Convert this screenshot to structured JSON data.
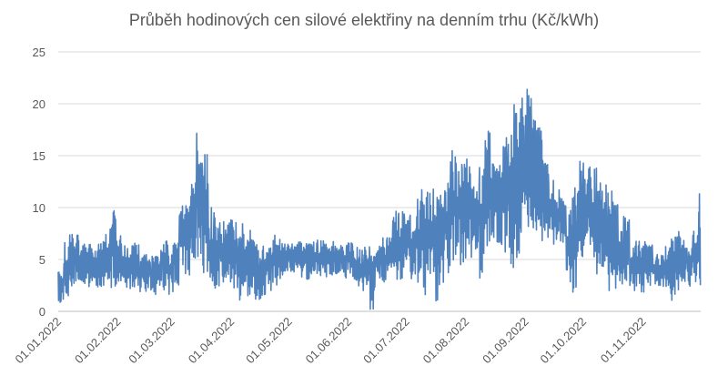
{
  "chart_data": {
    "type": "line",
    "title": "Průběh hodinových cen silové elektřiny na denním trhu (Kč/kWh)",
    "xlabel": "",
    "ylabel": "",
    "ylim": [
      0,
      25
    ],
    "yticks": [
      "0",
      "5",
      "10",
      "15",
      "20",
      "25"
    ],
    "xlim": [
      "2022-01-01",
      "2022-12-01"
    ],
    "xticks": [
      "01.01.2022",
      "01.02.2022",
      "01.03.2022",
      "01.04.2022",
      "01.05.2022",
      "01.06.2022",
      "01.07.2022",
      "01.08.2022",
      "01.09.2022",
      "01.10.2022",
      "01.11.2022"
    ],
    "grid": "horizontal",
    "legend": "none",
    "series_color": "#4F81BD",
    "grid_color": "#D9D9D9",
    "series": [
      {
        "x": [
          "2022-01-01",
          "2022-01-04",
          "2022-01-07",
          "2022-01-10",
          "2022-01-13",
          "2022-01-16",
          "2022-01-19",
          "2022-01-22",
          "2022-01-25",
          "2022-01-28",
          "2022-01-31",
          "2022-02-03",
          "2022-02-06",
          "2022-02-09",
          "2022-02-12",
          "2022-02-15",
          "2022-02-18",
          "2022-02-21",
          "2022-02-24",
          "2022-02-27",
          "2022-03-02",
          "2022-03-05",
          "2022-03-08",
          "2022-03-11",
          "2022-03-14",
          "2022-03-17",
          "2022-03-20",
          "2022-03-23",
          "2022-03-26",
          "2022-03-29",
          "2022-04-01",
          "2022-04-04",
          "2022-04-07",
          "2022-04-10",
          "2022-04-13",
          "2022-04-16",
          "2022-04-19",
          "2022-04-22",
          "2022-04-25",
          "2022-04-28",
          "2022-05-01",
          "2022-05-04",
          "2022-05-07",
          "2022-05-10",
          "2022-05-13",
          "2022-05-16",
          "2022-05-19",
          "2022-05-22",
          "2022-05-25",
          "2022-05-28",
          "2022-05-31",
          "2022-06-03",
          "2022-06-06",
          "2022-06-09",
          "2022-06-12",
          "2022-06-15",
          "2022-06-18",
          "2022-06-21",
          "2022-06-24",
          "2022-06-27",
          "2022-06-30",
          "2022-07-03",
          "2022-07-06",
          "2022-07-09",
          "2022-07-12",
          "2022-07-15",
          "2022-07-18",
          "2022-07-21",
          "2022-07-24",
          "2022-07-27",
          "2022-07-30",
          "2022-08-02",
          "2022-08-05",
          "2022-08-08",
          "2022-08-11",
          "2022-08-14",
          "2022-08-17",
          "2022-08-20",
          "2022-08-23",
          "2022-08-26",
          "2022-08-29",
          "2022-09-01",
          "2022-09-04",
          "2022-09-07",
          "2022-09-10",
          "2022-09-13",
          "2022-09-16",
          "2022-09-19",
          "2022-09-22",
          "2022-09-25",
          "2022-09-28",
          "2022-10-01",
          "2022-10-04",
          "2022-10-07",
          "2022-10-10",
          "2022-10-13",
          "2022-10-16",
          "2022-10-19",
          "2022-10-22",
          "2022-10-25",
          "2022-10-28",
          "2022-10-31",
          "2022-11-03",
          "2022-11-06",
          "2022-11-09",
          "2022-11-12",
          "2022-11-15",
          "2022-11-18",
          "2022-11-21",
          "2022-11-24",
          "2022-11-27",
          "2022-11-30"
        ],
        "max": [
          3.8,
          6.8,
          7.5,
          7.4,
          6.5,
          6.6,
          6.3,
          6.8,
          7.4,
          9.8,
          7.6,
          6.8,
          6.4,
          6.6,
          5.5,
          6.2,
          5.8,
          6.0,
          7.2,
          6.4,
          7.8,
          10.8,
          10.5,
          12.5,
          18.0,
          15.5,
          10.0,
          9.5,
          9.0,
          9.0,
          8.8,
          8.5,
          7.5,
          7.8,
          6.8,
          6.5,
          7.4,
          7.4,
          7.2,
          6.8,
          6.5,
          6.8,
          6.7,
          6.9,
          6.9,
          7.1,
          6.8,
          6.8,
          6.5,
          6.5,
          6.8,
          6.5,
          6.0,
          6.4,
          6.1,
          6.5,
          7.1,
          7.5,
          9.7,
          10.0,
          9.3,
          9.5,
          10.9,
          11.8,
          11.8,
          12.2,
          12.4,
          12.6,
          16.6,
          14.6,
          15.5,
          14.5,
          12.5,
          14.0,
          17.6,
          15.2,
          14.3,
          16.8,
          17.2,
          20.2,
          21.0,
          21.5,
          18.6,
          17.8,
          14.6,
          13.5,
          11.8,
          11.5,
          9.8,
          12.5,
          15.0,
          14.9,
          14.6,
          14.3,
          12.3,
          11.6,
          10.6,
          7.8,
          9.3,
          6.2,
          6.8,
          6.8,
          6.4,
          5.5,
          5.8,
          6.8,
          7.2,
          9.2,
          7.0,
          7.2,
          7.8,
          12.6
        ],
        "min": [
          0.8,
          1.5,
          2.2,
          1.8,
          2.5,
          2.0,
          1.9,
          2.3,
          2.2,
          2.1,
          2.6,
          2.2,
          2.0,
          2.1,
          1.8,
          1.5,
          1.2,
          2.3,
          2.0,
          1.6,
          2.5,
          4.5,
          3.5,
          5.0,
          4.2,
          3.2,
          2.2,
          2.0,
          2.5,
          2.8,
          2.2,
          0.2,
          1.5,
          1.2,
          0.0,
          1.0,
          2.0,
          2.5,
          3.0,
          3.5,
          3.8,
          3.5,
          3.2,
          3.0,
          3.6,
          3.2,
          3.3,
          3.5,
          3.0,
          3.2,
          3.6,
          2.5,
          1.8,
          2.5,
          0.0,
          3.2,
          2.8,
          3.3,
          2.7,
          3.0,
          4.5,
          3.0,
          2.8,
          1.5,
          3.5,
          0.0,
          2.2,
          3.5,
          4.0,
          4.5,
          4.6,
          5.2,
          6.0,
          3.2,
          4.0,
          6.0,
          5.8,
          5.5,
          3.8,
          5.2,
          7.5,
          8.0,
          6.8,
          5.5,
          7.0,
          6.0,
          6.8,
          6.5,
          2.5,
          1.5,
          5.0,
          5.2,
          3.5,
          2.5,
          4.2,
          1.5,
          2.2,
          2.5,
          2.8,
          2.0,
          2.4,
          1.8,
          2.5,
          2.4,
          2.2,
          1.3,
          0.2,
          1.0,
          2.8,
          2.4,
          2.6,
          2.0,
          6.5
        ]
      }
    ]
  }
}
